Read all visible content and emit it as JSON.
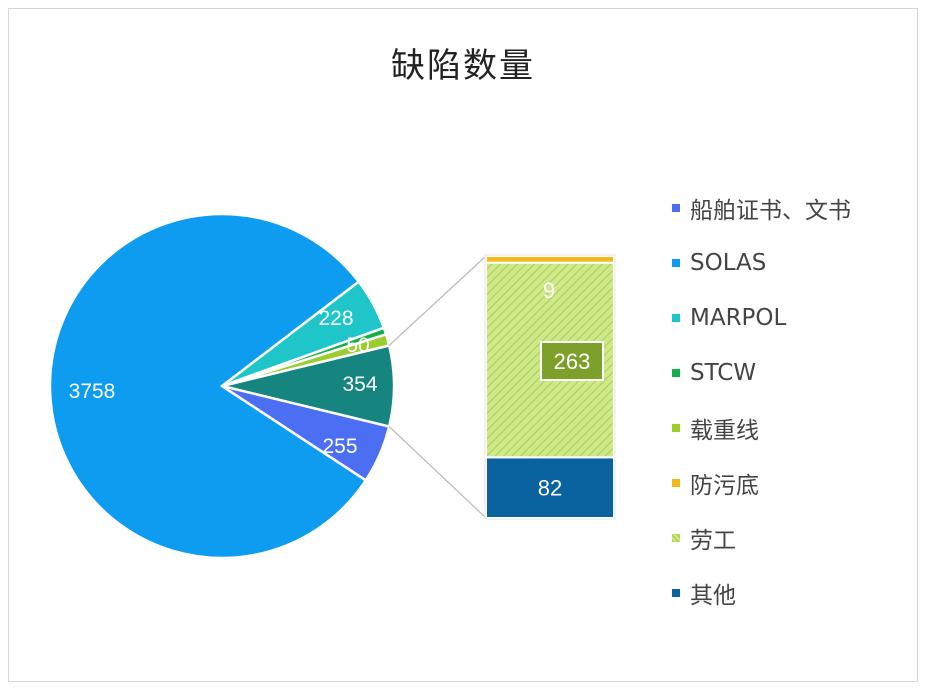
{
  "chart_data": {
    "type": "pie",
    "title": "缺陷数量",
    "legend_position": "right",
    "categories": [
      "船舶证书、文书",
      "SOLAS",
      "MARPOL",
      "STCW",
      "载重线",
      "防污底",
      "劳工",
      "其他"
    ],
    "values": [
      255,
      3758,
      228,
      30,
      50,
      9,
      263,
      82
    ],
    "value_labels": [
      "255",
      "3758",
      "228",
      "",
      "50",
      "9",
      "263",
      "82"
    ],
    "combined_slice": {
      "value": 354,
      "label": "354",
      "breakout_categories": [
        "防污底",
        "劳工",
        "其他"
      ]
    },
    "colors": {
      "船舶证书、文书": "#4c6ef2",
      "SOLAS": "#0d9cf0",
      "MARPOL": "#1ec6c9",
      "STCW": "#11b04a",
      "载重线": "#9ccc2e",
      "防污底": "#f2b918",
      "劳工": "#cfe88c",
      "其他": "#0a639e",
      "combined": "#16857f"
    }
  }
}
